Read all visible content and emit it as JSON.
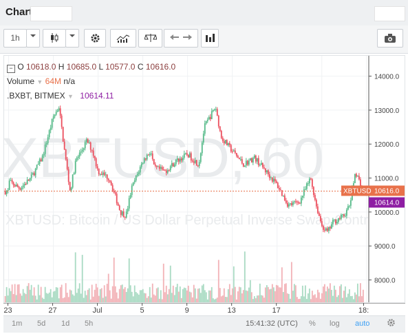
{
  "window": {
    "title": "Chart"
  },
  "toolbar": {
    "interval": "1h"
  },
  "legend": {
    "ohlc": [
      {
        "label": "O",
        "value": "10618.0"
      },
      {
        "label": "H",
        "value": "10685.0"
      },
      {
        "label": "L",
        "value": "10577.0"
      },
      {
        "label": "C",
        "value": "10616.0"
      }
    ],
    "volume_label": "Volume",
    "volume_value": "64M",
    "volume_extra": "n/a",
    "index_label": ".BXBT, BITMEX",
    "index_value": "10614.11"
  },
  "watermark": {
    "symbol": "XBTUSD, 60",
    "description": "XBTUSD: Bitcoin / US Dollar Perpetual Inverse Swap Contract"
  },
  "price_labels": [
    {
      "text": "XBTUSD",
      "value": "10616.0",
      "color": "#e8714a"
    },
    {
      "text": "",
      "value": "10614.0",
      "color": "#8e1ea3"
    }
  ],
  "bottom": {
    "ranges": [
      "1m",
      "5d",
      "1d",
      "5h"
    ],
    "time": "15:41:32 (UTC)",
    "percent": "%",
    "log": "log",
    "auto": "auto"
  },
  "chart_data": {
    "type": "candlestick",
    "symbol": "XBTUSD",
    "interval": "60",
    "y_ticks": [
      "14000.0",
      "13000.0",
      "12000.0",
      "11000.0",
      "10000.0",
      "9000.0",
      "8000.0"
    ],
    "ylim": [
      7300,
      14600
    ],
    "x_ticks": [
      "23",
      "27",
      "Jul",
      "5",
      "9",
      "13",
      "17",
      "18:"
    ],
    "close_path": [
      [
        23,
        10900
      ],
      [
        24,
        10700
      ],
      [
        25,
        11000
      ],
      [
        26,
        11600
      ],
      [
        27,
        12800
      ],
      [
        27.5,
        13100
      ],
      [
        28,
        11800
      ],
      [
        28.5,
        10600
      ],
      [
        29,
        11500
      ],
      [
        30,
        12100
      ],
      [
        30.5,
        11800
      ],
      [
        31,
        11200
      ],
      [
        32,
        11000
      ],
      [
        33,
        10000
      ],
      [
        33.5,
        9900
      ],
      [
        34,
        10700
      ],
      [
        35,
        11500
      ],
      [
        35.7,
        11800
      ],
      [
        36,
        11300
      ],
      [
        37,
        11200
      ],
      [
        38,
        11500
      ],
      [
        39,
        11700
      ],
      [
        40,
        11400
      ],
      [
        40.5,
        12500
      ],
      [
        41,
        12800
      ],
      [
        41.5,
        13100
      ],
      [
        42,
        12200
      ],
      [
        43,
        11800
      ],
      [
        44,
        11400
      ],
      [
        45,
        11600
      ],
      [
        46,
        11200
      ],
      [
        47,
        10800
      ],
      [
        48,
        10200
      ],
      [
        49,
        10300
      ],
      [
        50,
        11000
      ],
      [
        50.5,
        10200
      ],
      [
        51,
        9600
      ],
      [
        51.5,
        9400
      ],
      [
        52,
        9700
      ],
      [
        53,
        9900
      ],
      [
        53.5,
        10200
      ],
      [
        54,
        11200
      ],
      [
        54.7,
        10616
      ]
    ],
    "last_price": 10616.0,
    "index_price": 10614.0
  },
  "colors": {
    "up": "#53b987",
    "down": "#eb4d5c",
    "last_line": "#e8714a",
    "index": "#8e1ea3"
  }
}
